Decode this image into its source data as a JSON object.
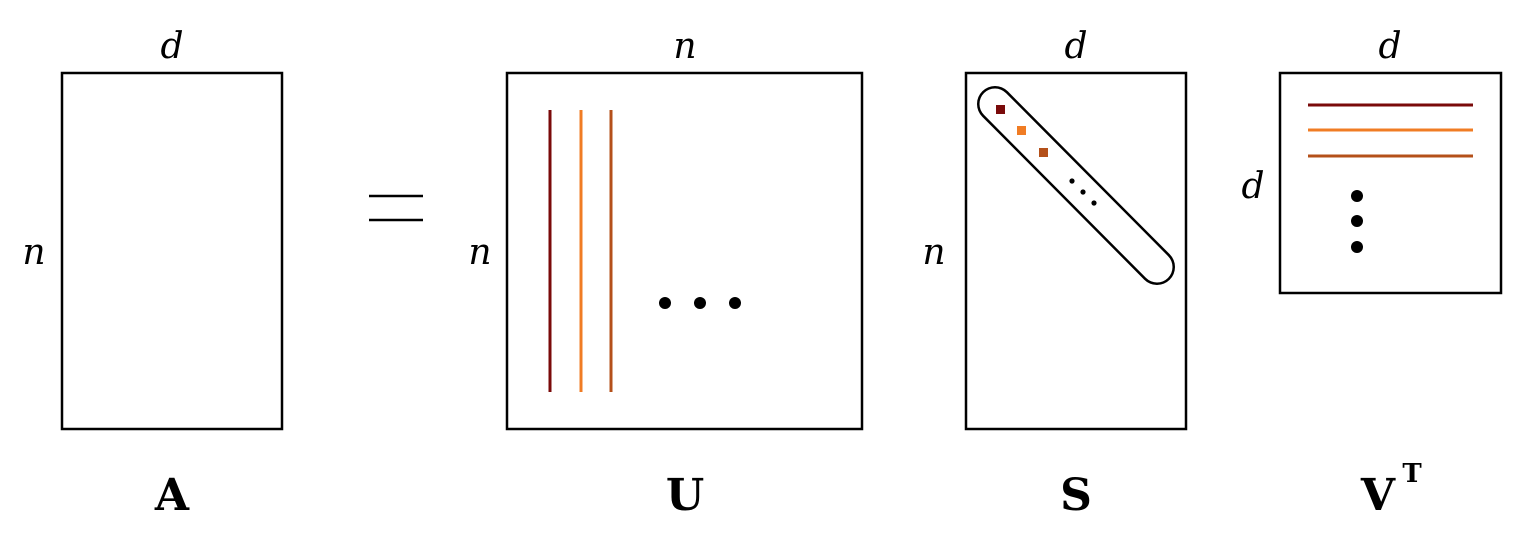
{
  "colors": {
    "component_1": "#7a0a0a",
    "component_2": "#f07c24",
    "component_3": "#b4501a",
    "ink": "#000000"
  },
  "matrices": {
    "A": {
      "name": "A",
      "width_label": "d",
      "height_label": "n"
    },
    "equals": "=",
    "U": {
      "name": "U",
      "width_label": "n",
      "height_label": "n"
    },
    "S": {
      "name": "S",
      "width_label": "d",
      "height_label": "n"
    },
    "VT": {
      "name": "V",
      "superscript": "T",
      "width_label": "d",
      "height_label": "d"
    }
  }
}
